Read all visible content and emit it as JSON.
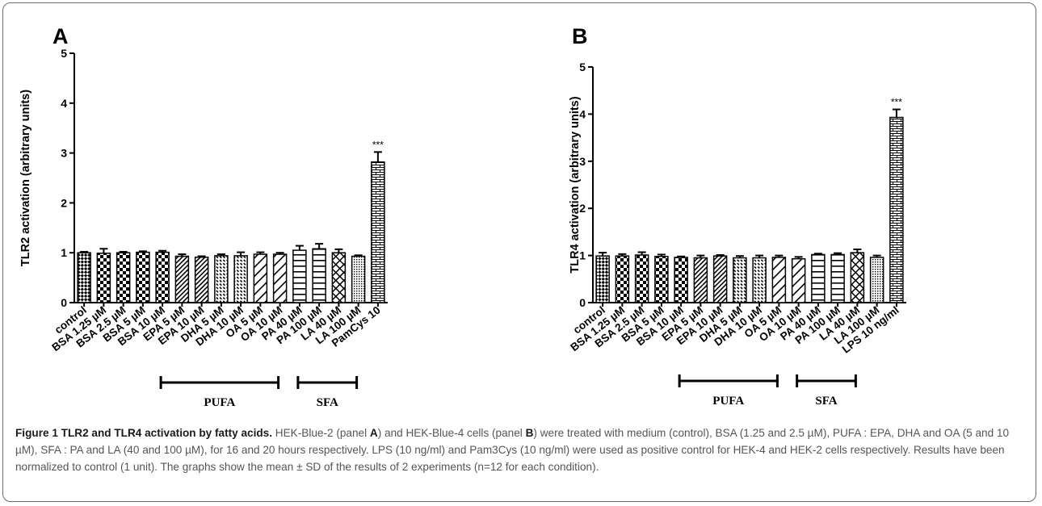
{
  "colors": {
    "bar_stroke": "#000000",
    "caption_text": "#555555",
    "caption_bold": "#1a1a1a"
  },
  "chart_data": [
    {
      "type": "bar",
      "panel_label": "A",
      "title": "",
      "xlabel": "",
      "ylabel": "TLR2 activation (arbitrary units)",
      "ylim": [
        0,
        5
      ],
      "yticks": [
        "0",
        "1",
        "2",
        "3",
        "4",
        "5"
      ],
      "grid": false,
      "legend": "none",
      "categories": [
        "control",
        "BSA 1.25 µM",
        "BSA 2.5 µM",
        "BSA 5 µM",
        "BSA 10 µM",
        "EPA 5 µM",
        "EPA 10 µM",
        "DHA 5 µM",
        "DHA 10 µM",
        "OA 5 µM",
        "OA 10 µM",
        "PA 40 µM",
        "PA 100 µM",
        "LA 40 µM",
        "LA 100 µM",
        "PamCys 10"
      ],
      "values": [
        1.0,
        0.99,
        1.0,
        1.01,
        1.01,
        0.93,
        0.91,
        0.94,
        0.94,
        0.97,
        0.97,
        1.05,
        1.08,
        1.0,
        0.93,
        2.82
      ],
      "errors": [
        0.02,
        0.09,
        0.02,
        0.02,
        0.03,
        0.04,
        0.02,
        0.03,
        0.07,
        0.04,
        0.03,
        0.09,
        0.1,
        0.07,
        0.02,
        0.2
      ],
      "patterns": [
        "diag-checker",
        "checker",
        "checker",
        "checker",
        "checker",
        "diag-lines",
        "diag-lines",
        "dash-diag",
        "dash-diag",
        "slash",
        "slash",
        "horizontal",
        "horizontal",
        "crosshatch",
        "small-grid",
        "brick"
      ],
      "annotations": [
        {
          "category": "PamCys 10",
          "text": "***"
        }
      ],
      "groups": [
        {
          "label": "PUFA",
          "from": 4,
          "to": 10
        },
        {
          "label": "SFA",
          "from": 11,
          "to": 14
        }
      ]
    },
    {
      "type": "bar",
      "panel_label": "B",
      "title": "",
      "xlabel": "",
      "ylabel": "TLR4 activation (arbitrary units)",
      "ylim": [
        0,
        5
      ],
      "yticks": [
        "0",
        "1",
        "2",
        "3",
        "4",
        "5"
      ],
      "grid": false,
      "legend": "none",
      "categories": [
        "control",
        "BSA 1.25 µM",
        "BSA 2.5 µM",
        "BSA 5 µM",
        "BSA 10 µM",
        "EPA 5 µM",
        "EPA 10 µM",
        "DHA 5 µM",
        "DHA 10 µM",
        "OA 5 µM",
        "OA 10 µM",
        "PA 40 µM",
        "PA 100 µM",
        "LA 40 µM",
        "LA 100 µM",
        "LPS 10 ng/ml"
      ],
      "values": [
        0.99,
        0.99,
        1.01,
        0.98,
        0.96,
        0.95,
        0.99,
        0.95,
        0.95,
        0.96,
        0.93,
        1.02,
        1.02,
        1.06,
        0.96,
        3.93
      ],
      "errors": [
        0.07,
        0.04,
        0.06,
        0.04,
        0.02,
        0.05,
        0.02,
        0.04,
        0.05,
        0.04,
        0.04,
        0.02,
        0.03,
        0.07,
        0.04,
        0.17
      ],
      "patterns": [
        "diag-checker",
        "checker",
        "checker",
        "checker",
        "checker",
        "diag-lines",
        "diag-lines",
        "dash-diag",
        "dash-diag",
        "slash",
        "slash",
        "horizontal",
        "horizontal",
        "crosshatch",
        "small-grid",
        "brick"
      ],
      "annotations": [
        {
          "category": "LPS 10 ng/ml",
          "text": "***"
        }
      ],
      "groups": [
        {
          "label": "PUFA",
          "from": 4,
          "to": 9
        },
        {
          "label": "SFA",
          "from": 10,
          "to": 13
        }
      ]
    }
  ],
  "caption": {
    "title": "Figure 1 TLR2 and TLR4 activation by fatty acids.",
    "t1": " HEK-Blue-2 (panel ",
    "b1": "A",
    "t2": ") and HEK-Blue-4 cells (panel ",
    "b2": "B",
    "t3": ") were treated with medium (control), BSA (1.25 and 2.5 µM), PUFA : EPA, DHA and OA (5 and 10 µM), SFA : PA and LA (40 and 100 µM), for 16 and 20 hours respectively. LPS (10 ng/ml) and Pam3Cys (10 ng/ml) were used as positive control for HEK-4 and HEK-2 cells respectively. Results have been normalized to control (1 unit). The graphs show the mean ± SD of the results of 2 experiments (n=12 for each condition)."
  }
}
